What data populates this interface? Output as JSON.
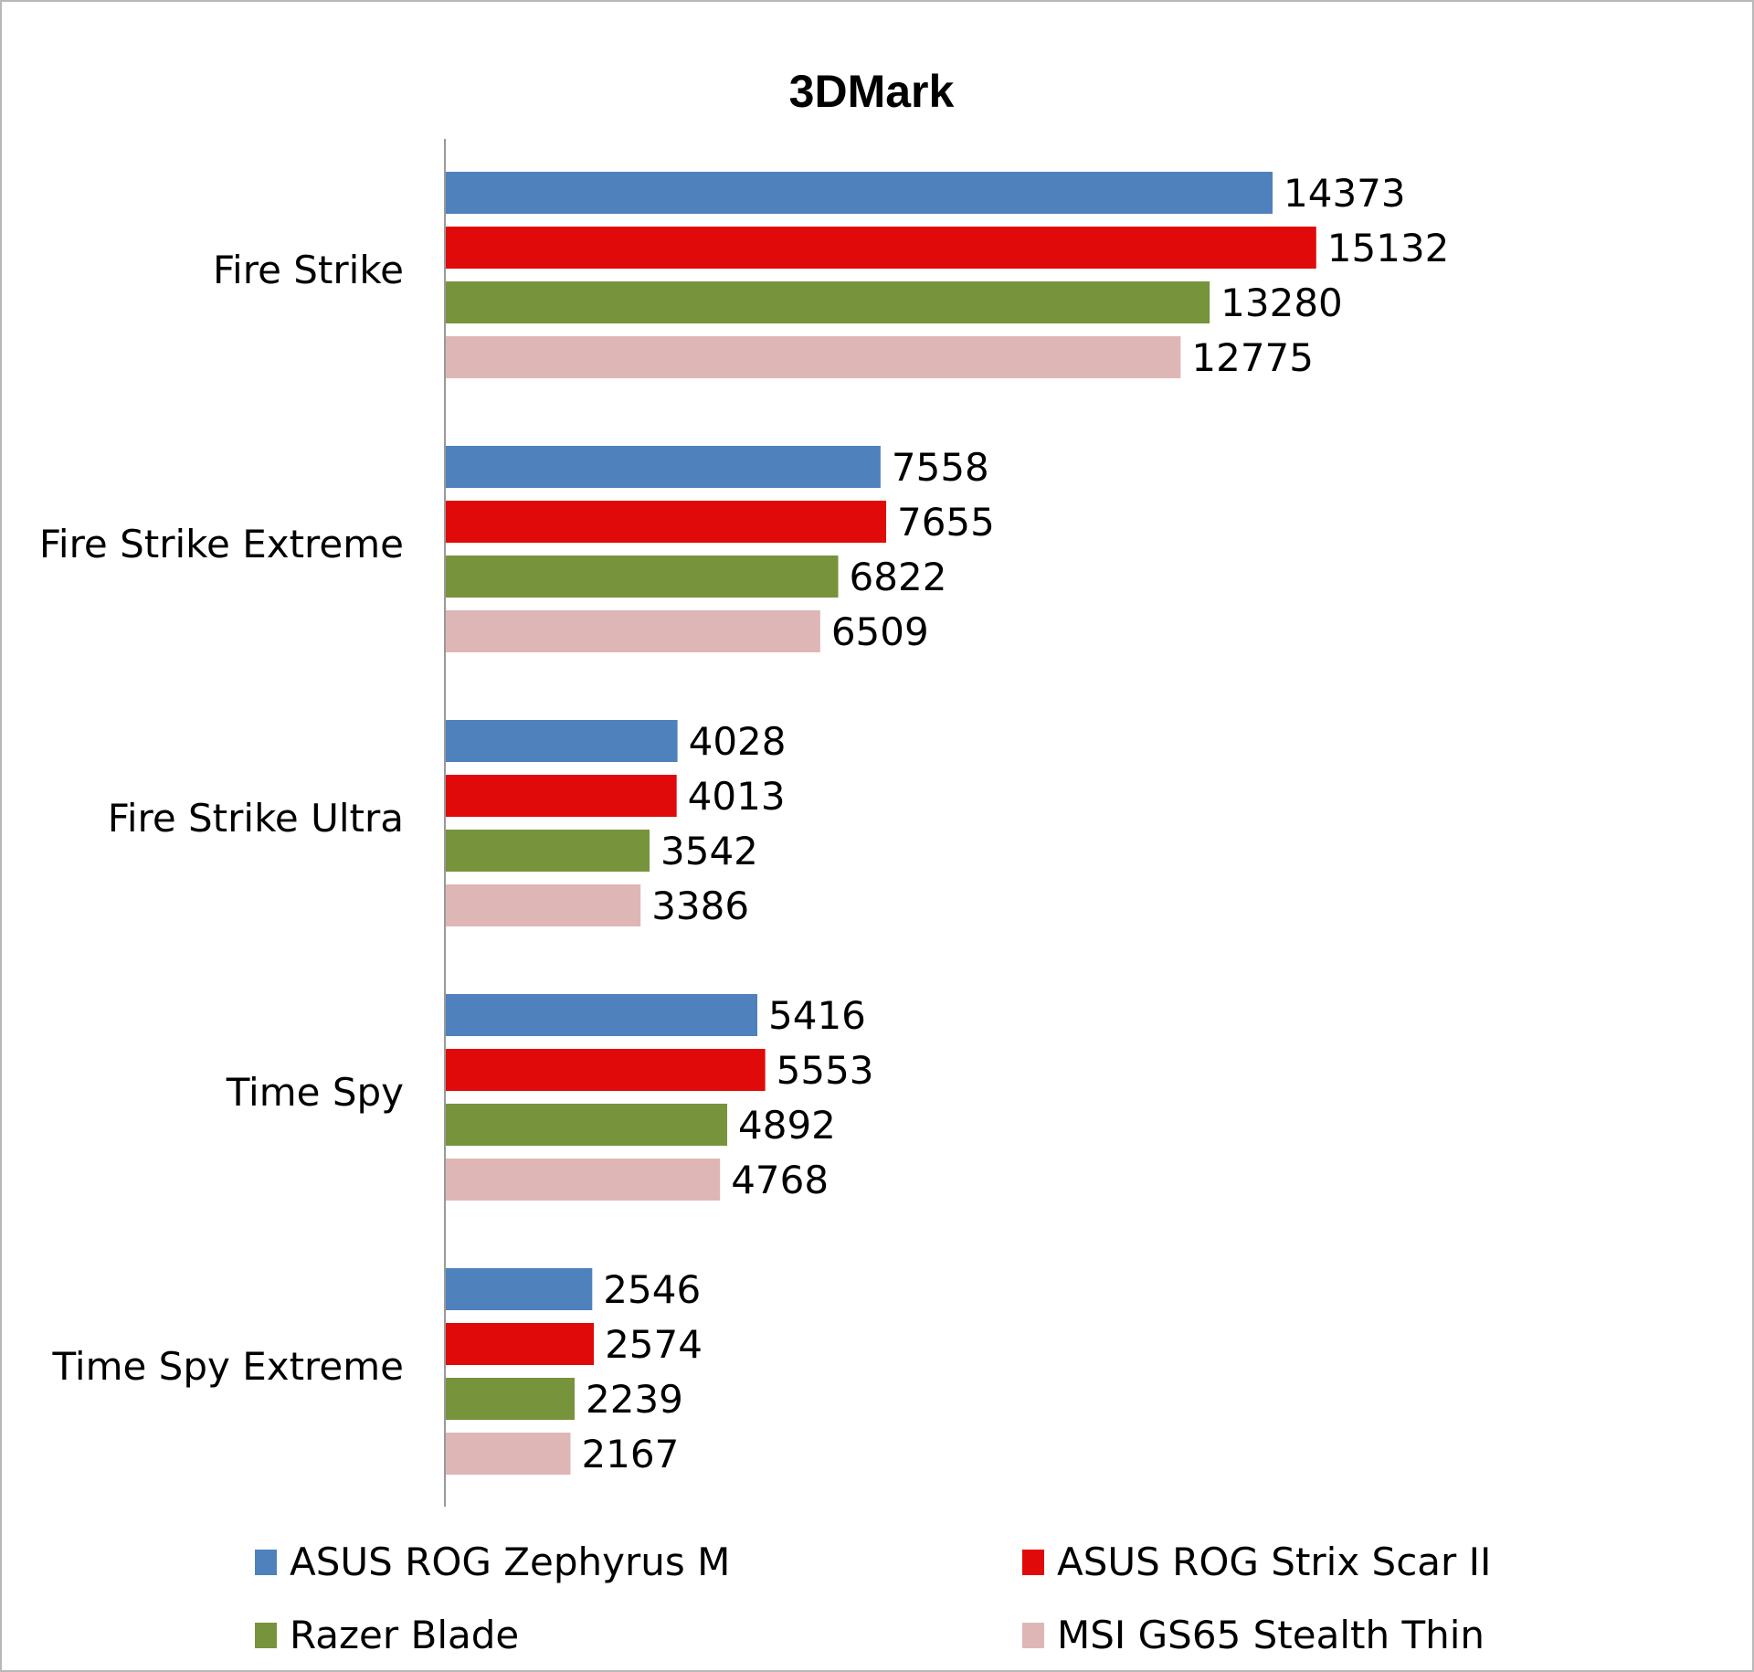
{
  "chart_data": {
    "type": "bar",
    "orientation": "horizontal",
    "title": "3DMark",
    "categories": [
      "Fire Strike",
      "Fire Strike Extreme",
      "Fire Strike Ultra",
      "Time Spy",
      "Time Spy Extreme"
    ],
    "series": [
      {
        "name": "ASUS ROG Zephyrus M",
        "color": "#4f81bd",
        "values": [
          14373,
          7558,
          4028,
          5416,
          2546
        ]
      },
      {
        "name": "ASUS ROG Strix Scar II",
        "color": "#e00a0a",
        "values": [
          15132,
          7655,
          4013,
          5553,
          2574
        ]
      },
      {
        "name": "Razer Blade",
        "color": "#77933c",
        "values": [
          13280,
          6822,
          3542,
          4892,
          2239
        ]
      },
      {
        "name": "MSI GS65 Stealth Thin",
        "color": "#deb6b6",
        "values": [
          12775,
          6509,
          3386,
          4768,
          2167
        ]
      }
    ],
    "xlim": [
      0,
      21000
    ],
    "grid": false,
    "data_labels": true,
    "legend": "bottom"
  }
}
